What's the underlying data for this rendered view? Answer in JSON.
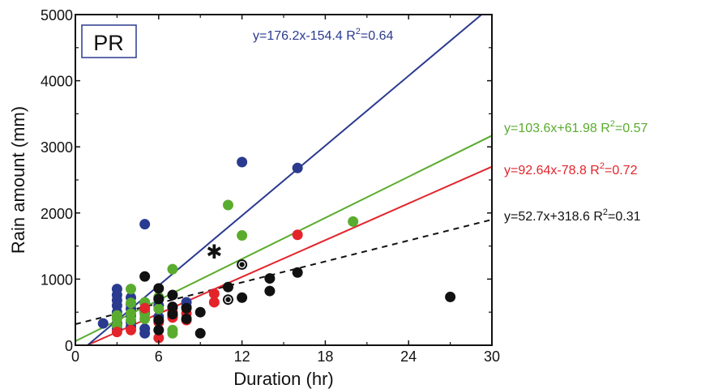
{
  "chart_data": {
    "type": "scatter",
    "title": "",
    "panel_label": "PR",
    "xlabel": "Duration (hr)",
    "ylabel": "Rain amount (mm)",
    "xlim": [
      0,
      30
    ],
    "ylim": [
      0,
      5000
    ],
    "xticks": [
      0,
      6,
      12,
      18,
      24,
      30
    ],
    "yticks": [
      0,
      1000,
      2000,
      3000,
      4000,
      5000
    ],
    "grid": false,
    "series": [
      {
        "name": "blue",
        "color": "#2a3a8f",
        "fit": {
          "slope": 176.2,
          "intercept": -154.4,
          "label": "y=176.2x-154.4 R",
          "r2": "=0.64",
          "style": "solid"
        },
        "points": [
          [
            2,
            330
          ],
          [
            3,
            850
          ],
          [
            3,
            760
          ],
          [
            3,
            680
          ],
          [
            3,
            600
          ],
          [
            3,
            500
          ],
          [
            3,
            420
          ],
          [
            3,
            330
          ],
          [
            3,
            250
          ],
          [
            4,
            720
          ],
          [
            4,
            620
          ],
          [
            4,
            550
          ],
          [
            4,
            450
          ],
          [
            4,
            350
          ],
          [
            4,
            280
          ],
          [
            5,
            1830
          ],
          [
            5,
            640
          ],
          [
            5,
            500
          ],
          [
            5,
            250
          ],
          [
            5,
            180
          ],
          [
            6,
            700
          ],
          [
            6,
            600
          ],
          [
            6,
            430
          ],
          [
            7,
            570
          ],
          [
            7,
            450
          ],
          [
            8,
            650
          ],
          [
            8,
            580
          ],
          [
            12,
            2770
          ],
          [
            16,
            2680
          ]
        ]
      },
      {
        "name": "green",
        "color": "#5aac2e",
        "fit": {
          "slope": 103.6,
          "intercept": 61.98,
          "label": "y=103.6x+61.98 R",
          "r2": "=0.57",
          "style": "solid"
        },
        "points": [
          [
            3,
            450
          ],
          [
            3,
            400
          ],
          [
            3,
            300
          ],
          [
            4,
            850
          ],
          [
            4,
            640
          ],
          [
            4,
            480
          ],
          [
            4,
            380
          ],
          [
            5,
            650
          ],
          [
            5,
            470
          ],
          [
            5,
            400
          ],
          [
            6,
            730
          ],
          [
            6,
            550
          ],
          [
            7,
            1150
          ],
          [
            7,
            230
          ],
          [
            7,
            180
          ],
          [
            11,
            2120
          ],
          [
            12,
            1660
          ],
          [
            20,
            1870
          ]
        ]
      },
      {
        "name": "red",
        "color": "#e3242b",
        "fit": {
          "slope": 92.64,
          "intercept": -78.8,
          "label": "y=92.64x-78.8 R",
          "r2": "=0.72",
          "style": "solid"
        },
        "points": [
          [
            3,
            200
          ],
          [
            4,
            230
          ],
          [
            5,
            560
          ],
          [
            6,
            350
          ],
          [
            6,
            110
          ],
          [
            7,
            500
          ],
          [
            7,
            420
          ],
          [
            8,
            480
          ],
          [
            8,
            380
          ],
          [
            10,
            780
          ],
          [
            10,
            650
          ],
          [
            16,
            1670
          ]
        ]
      },
      {
        "name": "black",
        "color": "#111111",
        "fit": {
          "slope": 52.7,
          "intercept": 318.6,
          "label": "y=52.7x+318.6 R",
          "r2": "=0.31",
          "style": "dashed"
        },
        "points": [
          [
            5,
            1040
          ],
          [
            6,
            860
          ],
          [
            6,
            700
          ],
          [
            6,
            380
          ],
          [
            6,
            230
          ],
          [
            7,
            760
          ],
          [
            7,
            580
          ],
          [
            7,
            470
          ],
          [
            8,
            560
          ],
          [
            8,
            400
          ],
          [
            9,
            500
          ],
          [
            9,
            180
          ],
          [
            11,
            880
          ],
          [
            12,
            720
          ],
          [
            14,
            1010
          ],
          [
            14,
            820
          ],
          [
            16,
            1100
          ],
          [
            27,
            730
          ]
        ],
        "ringed_points": [
          [
            12,
            1220
          ],
          [
            11,
            690
          ]
        ],
        "star_points": [
          [
            10,
            1420
          ]
        ]
      }
    ]
  }
}
